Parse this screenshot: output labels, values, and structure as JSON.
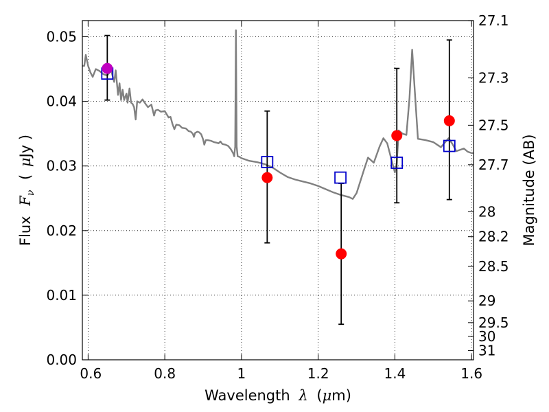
{
  "chart_data": {
    "type": "scatter",
    "xlabel_prefix": "Wavelength",
    "xlabel_symbol": "λ",
    "xlabel_unit_open": "(",
    "xlabel_unit_mu": "μ",
    "xlabel_unit_rest": "m)",
    "ylabel_prefix": "Flux",
    "ylabel_symbol_main": "F",
    "ylabel_symbol_sub": "ν",
    "ylabel_unit_open": "(",
    "ylabel_unit_mu": "μ",
    "ylabel_unit_rest": "Jy )",
    "y2label": "Magnitude (AB)",
    "xlim": [
      0.585,
      1.605
    ],
    "ylim": [
      0.0,
      0.0525
    ],
    "grid": true,
    "x_ticks": [
      {
        "value": 0.6,
        "label": "0.6"
      },
      {
        "value": 0.8,
        "label": "0.8"
      },
      {
        "value": 1.0,
        "label": "1"
      },
      {
        "value": 1.2,
        "label": "1.2"
      },
      {
        "value": 1.4,
        "label": "1.4"
      },
      {
        "value": 1.6,
        "label": "1.6"
      }
    ],
    "y_ticks": [
      {
        "value": 0.0,
        "label": "0.00"
      },
      {
        "value": 0.01,
        "label": "0.01"
      },
      {
        "value": 0.02,
        "label": "0.02"
      },
      {
        "value": 0.03,
        "label": "0.03"
      },
      {
        "value": 0.04,
        "label": "0.04"
      },
      {
        "value": 0.05,
        "label": "0.05"
      }
    ],
    "y2_ticks": [
      {
        "value": 27.1,
        "label": "27.1"
      },
      {
        "value": 27.3,
        "label": "27.3"
      },
      {
        "value": 27.5,
        "label": "27.5"
      },
      {
        "value": 27.7,
        "label": "27.7"
      },
      {
        "value": 28.0,
        "label": "28"
      },
      {
        "value": 28.2,
        "label": "28.2"
      },
      {
        "value": 28.5,
        "label": "28.5"
      },
      {
        "value": 29.0,
        "label": "29"
      },
      {
        "value": 29.5,
        "label": "29.5"
      },
      {
        "value": 30.0,
        "label": "30"
      },
      {
        "value": 31.0,
        "label": "31"
      }
    ],
    "spectrum": {
      "color": "#808080",
      "points": [
        [
          0.585,
          0.0455
        ],
        [
          0.59,
          0.0455
        ],
        [
          0.594,
          0.0472
        ],
        [
          0.6,
          0.0455
        ],
        [
          0.606,
          0.0445
        ],
        [
          0.612,
          0.0438
        ],
        [
          0.62,
          0.045
        ],
        [
          0.63,
          0.0447
        ],
        [
          0.64,
          0.0442
        ],
        [
          0.65,
          0.044
        ],
        [
          0.66,
          0.0448
        ],
        [
          0.668,
          0.043
        ],
        [
          0.672,
          0.0448
        ],
        [
          0.678,
          0.041
        ],
        [
          0.682,
          0.0428
        ],
        [
          0.686,
          0.0402
        ],
        [
          0.69,
          0.0418
        ],
        [
          0.694,
          0.0402
        ],
        [
          0.7,
          0.0412
        ],
        [
          0.703,
          0.0398
        ],
        [
          0.708,
          0.042
        ],
        [
          0.712,
          0.0398
        ],
        [
          0.716,
          0.0396
        ],
        [
          0.72,
          0.0391
        ],
        [
          0.724,
          0.0372
        ],
        [
          0.728,
          0.04
        ],
        [
          0.735,
          0.0398
        ],
        [
          0.742,
          0.0403
        ],
        [
          0.75,
          0.0396
        ],
        [
          0.756,
          0.0391
        ],
        [
          0.765,
          0.0395
        ],
        [
          0.772,
          0.0378
        ],
        [
          0.776,
          0.0386
        ],
        [
          0.782,
          0.0387
        ],
        [
          0.79,
          0.0384
        ],
        [
          0.8,
          0.0385
        ],
        [
          0.81,
          0.0375
        ],
        [
          0.815,
          0.0376
        ],
        [
          0.82,
          0.0365
        ],
        [
          0.825,
          0.0357
        ],
        [
          0.83,
          0.0364
        ],
        [
          0.838,
          0.0363
        ],
        [
          0.845,
          0.0359
        ],
        [
          0.855,
          0.0358
        ],
        [
          0.862,
          0.0354
        ],
        [
          0.868,
          0.0353
        ],
        [
          0.873,
          0.035
        ],
        [
          0.876,
          0.0345
        ],
        [
          0.879,
          0.0351
        ],
        [
          0.885,
          0.0353
        ],
        [
          0.89,
          0.0352
        ],
        [
          0.895,
          0.0349
        ],
        [
          0.9,
          0.0341
        ],
        [
          0.903,
          0.0333
        ],
        [
          0.907,
          0.034
        ],
        [
          0.912,
          0.034
        ],
        [
          0.92,
          0.0339
        ],
        [
          0.928,
          0.0337
        ],
        [
          0.935,
          0.0336
        ],
        [
          0.94,
          0.0335
        ],
        [
          0.945,
          0.0338
        ],
        [
          0.95,
          0.0334
        ],
        [
          0.958,
          0.0333
        ],
        [
          0.965,
          0.0331
        ],
        [
          0.972,
          0.0326
        ],
        [
          0.978,
          0.032
        ],
        [
          0.981,
          0.0315
        ],
        [
          0.9835,
          0.033
        ],
        [
          0.9855,
          0.051
        ],
        [
          0.9875,
          0.033
        ],
        [
          0.99,
          0.0315
        ],
        [
          0.995,
          0.0314
        ],
        [
          1.0,
          0.0312
        ],
        [
          1.01,
          0.031
        ],
        [
          1.02,
          0.0308
        ],
        [
          1.04,
          0.0306
        ],
        [
          1.06,
          0.0303
        ],
        [
          1.08,
          0.0298
        ],
        [
          1.1,
          0.029
        ],
        [
          1.12,
          0.0283
        ],
        [
          1.14,
          0.0279
        ],
        [
          1.16,
          0.0276
        ],
        [
          1.18,
          0.0273
        ],
        [
          1.2,
          0.0269
        ],
        [
          1.22,
          0.0264
        ],
        [
          1.24,
          0.0259
        ],
        [
          1.26,
          0.0255
        ],
        [
          1.28,
          0.0252
        ],
        [
          1.29,
          0.0249
        ],
        [
          1.3,
          0.0258
        ],
        [
          1.32,
          0.0295
        ],
        [
          1.33,
          0.0313
        ],
        [
          1.345,
          0.0305
        ],
        [
          1.36,
          0.033
        ],
        [
          1.37,
          0.0343
        ],
        [
          1.38,
          0.0335
        ],
        [
          1.395,
          0.0301
        ],
        [
          1.4,
          0.029
        ],
        [
          1.405,
          0.0305
        ],
        [
          1.41,
          0.0355
        ],
        [
          1.42,
          0.035
        ],
        [
          1.43,
          0.0348
        ],
        [
          1.438,
          0.0405
        ],
        [
          1.445,
          0.048
        ],
        [
          1.452,
          0.0415
        ],
        [
          1.46,
          0.0342
        ],
        [
          1.48,
          0.034
        ],
        [
          1.5,
          0.0337
        ],
        [
          1.52,
          0.0329
        ],
        [
          1.54,
          0.0343
        ],
        [
          1.55,
          0.0334
        ],
        [
          1.56,
          0.0323
        ],
        [
          1.57,
          0.0325
        ],
        [
          1.58,
          0.0327
        ],
        [
          1.59,
          0.0322
        ],
        [
          1.6,
          0.032
        ],
        [
          1.605,
          0.032
        ]
      ]
    },
    "observed": {
      "color": "#ff0000",
      "points": [
        {
          "x": 1.067,
          "y": 0.0282,
          "yerr_low": 0.0181,
          "yerr_high": 0.0385
        },
        {
          "x": 1.26,
          "y": 0.0164,
          "yerr_low": 0.0055,
          "yerr_high": 0.0273
        },
        {
          "x": 1.405,
          "y": 0.0347,
          "yerr_low": 0.0243,
          "yerr_high": 0.0451
        },
        {
          "x": 1.542,
          "y": 0.037,
          "yerr_low": 0.0248,
          "yerr_high": 0.0495
        }
      ]
    },
    "optical_point": {
      "color": "#c000c0",
      "x": 0.65,
      "y": 0.0451,
      "yerr_low": 0.0402,
      "yerr_high": 0.0502
    },
    "model_points": {
      "color": "#0000cc",
      "points": [
        {
          "x": 0.65,
          "y": 0.0443
        },
        {
          "x": 1.067,
          "y": 0.0306
        },
        {
          "x": 1.258,
          "y": 0.0282
        },
        {
          "x": 1.405,
          "y": 0.0305
        },
        {
          "x": 1.542,
          "y": 0.0331
        }
      ]
    }
  }
}
